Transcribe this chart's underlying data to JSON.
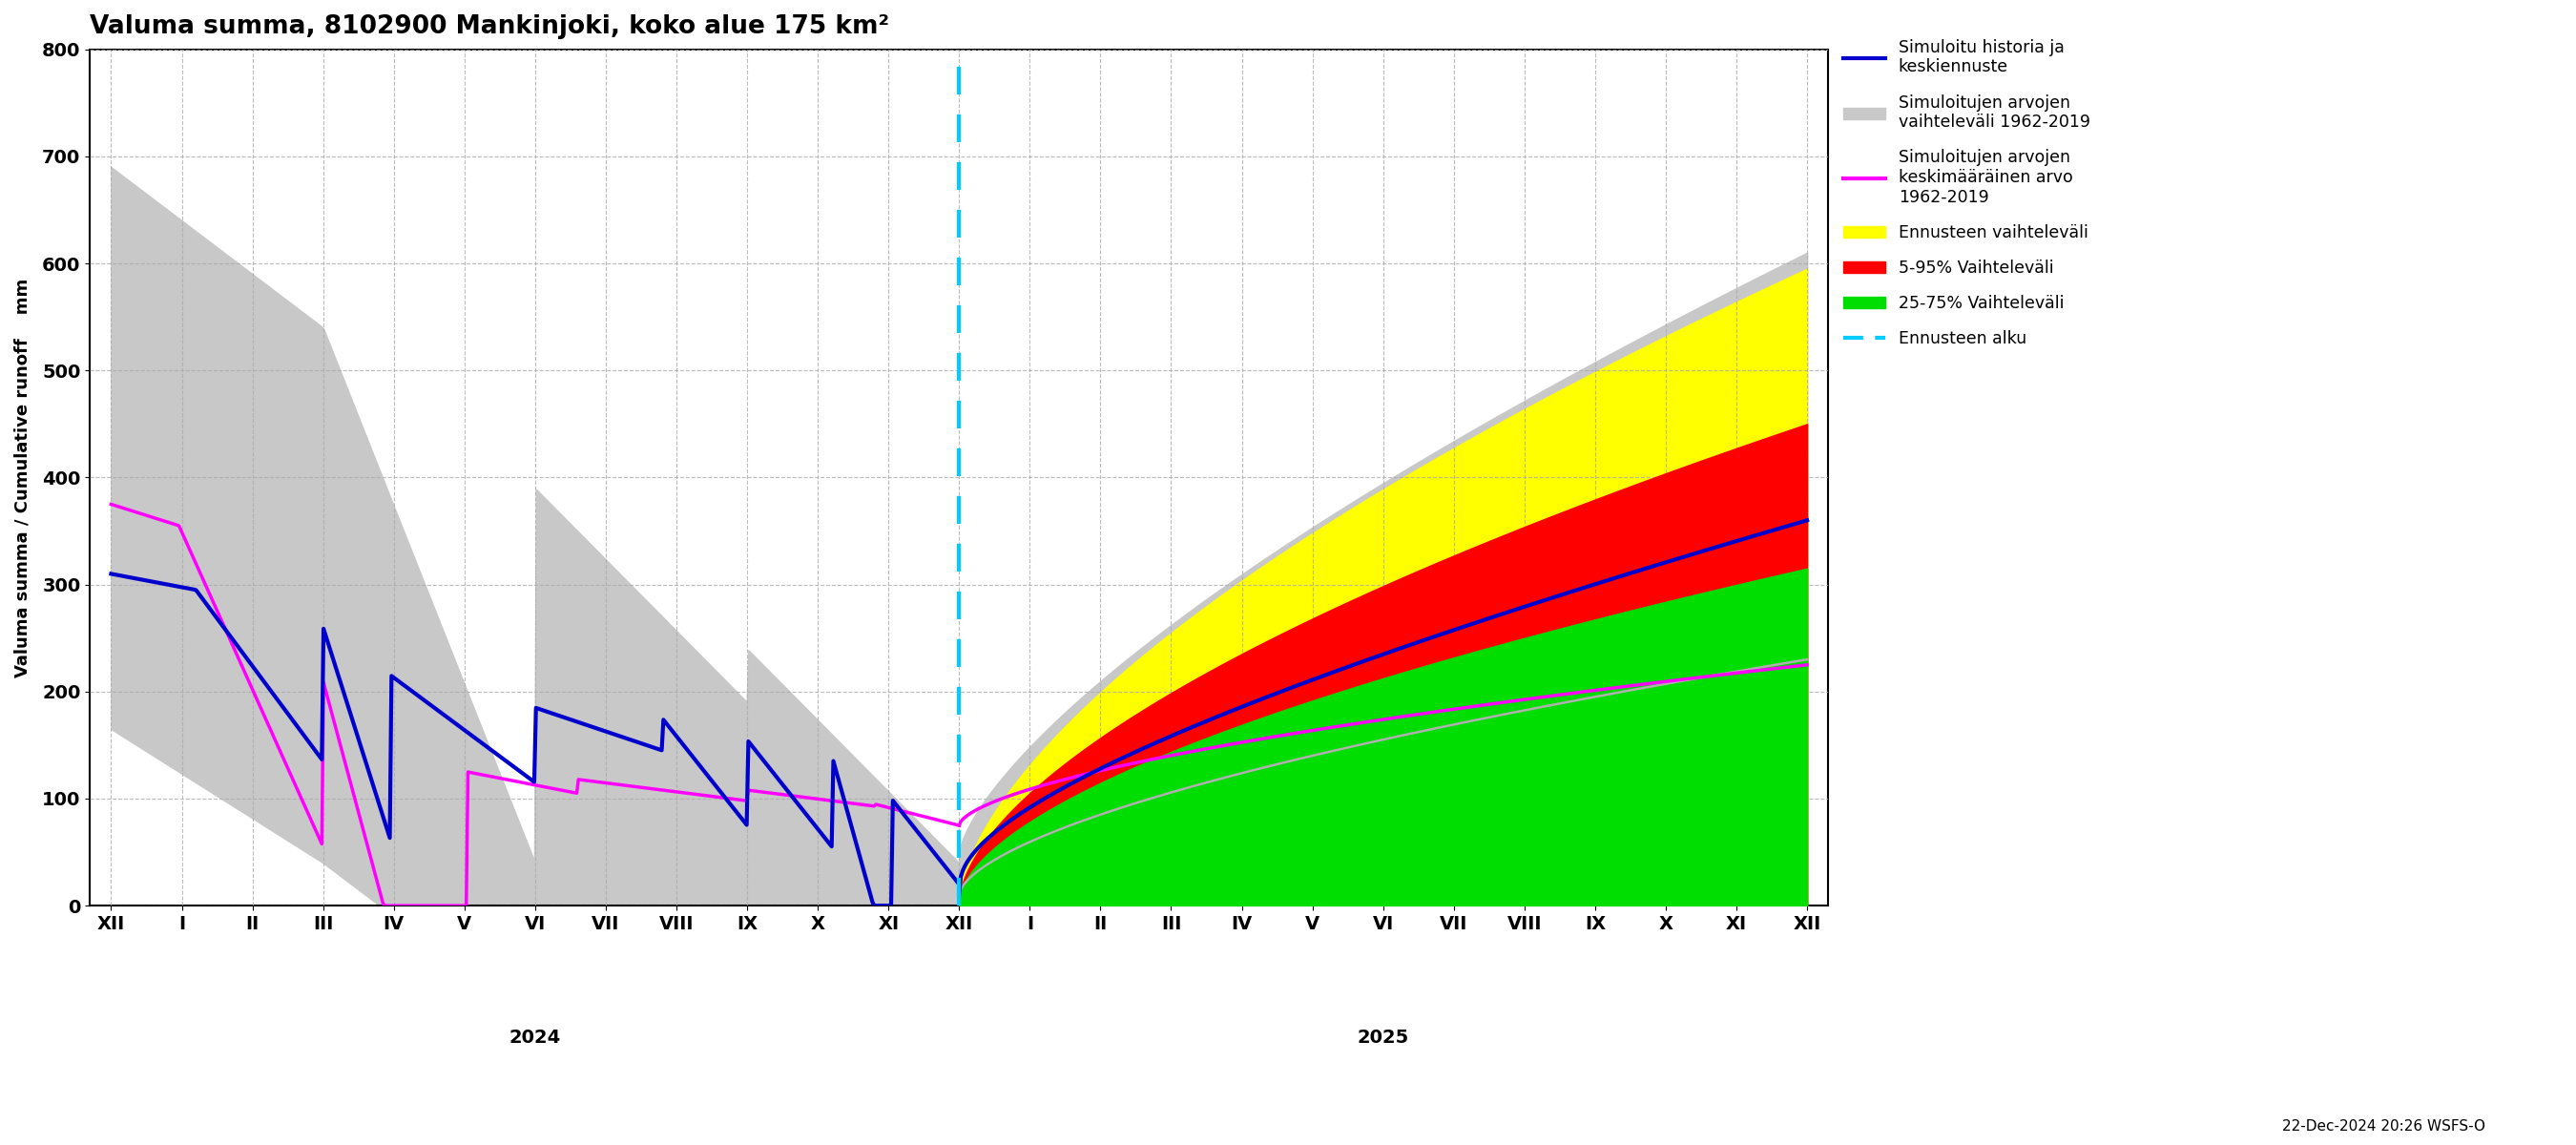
{
  "title": "Valuma summa, 8102900 Mankinjoki, koko alue 175 km²",
  "ylabel": "Valuma summa / Cumulative runoff    mm",
  "ylim": [
    0,
    800
  ],
  "yticks": [
    0,
    100,
    200,
    300,
    400,
    500,
    600,
    700,
    800
  ],
  "background_color": "#ffffff",
  "grid_color": "#aaaaaa",
  "timestamp_label": "22-Dec-2024 20:26 WSFS-O",
  "legend_entries": [
    "Simuloitu historia ja\nkeskiennuste",
    "Simuloitujen arvojen\nvaihteleväli 1962-2019",
    "Simuloitujen arvojen\nkeskimääräinen arvo\n1962-2019",
    "Ennusteen vaihteleväli",
    "5-95% Vaihteleväli",
    "25-75% Vaihteleväli",
    "Ennusteen alku"
  ]
}
